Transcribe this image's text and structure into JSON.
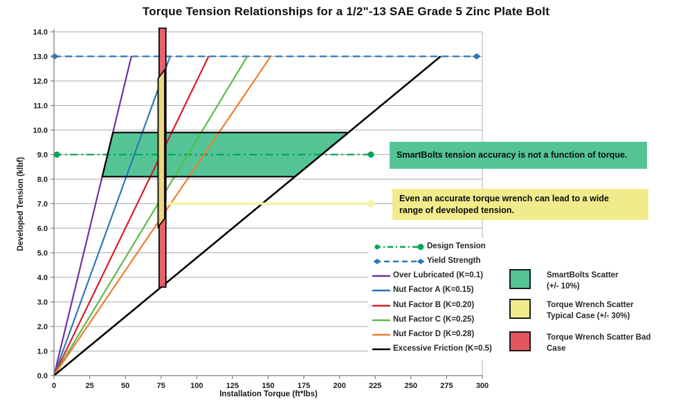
{
  "chart_data": {
    "type": "line",
    "title": "Torque Tension Relationships for a 1/2\"-13 SAE Grade 5 Zinc Plate Bolt",
    "xlabel": "Installation Torque (ft*lbs)",
    "ylabel": "Developed Tension (klbf)",
    "xlim": [
      0,
      300
    ],
    "ylim": [
      0,
      14
    ],
    "xticks": [
      0,
      25,
      50,
      75,
      100,
      125,
      150,
      175,
      200,
      225,
      250,
      275,
      300
    ],
    "yticks": [
      "0.0",
      "1.0",
      "2.0",
      "3.0",
      "4.0",
      "5.0",
      "6.0",
      "7.0",
      "8.0",
      "9.0",
      "10.0",
      "11.0",
      "12.0",
      "13.0",
      "14.0"
    ],
    "grid": "horizontal-only",
    "legend_position": "inside-lower-right",
    "series": [
      {
        "name": "Design Tension",
        "kind": "reference",
        "y": 9,
        "points": [
          [
            0,
            9
          ],
          [
            222,
            9
          ]
        ],
        "color": "#00A651",
        "dash": "dashdot",
        "marker": "circle",
        "marker_points": [
          [
            2,
            9
          ],
          [
            222,
            9
          ]
        ],
        "width": 2.2
      },
      {
        "name": "Yield Strength",
        "kind": "reference",
        "y": 13,
        "points": [
          [
            0,
            13
          ],
          [
            296,
            13
          ]
        ],
        "color": "#2E75B6",
        "dash": "dash",
        "marker": "diamond",
        "marker_points": [
          [
            0.5,
            13
          ],
          [
            296,
            13
          ]
        ],
        "width": 2.2
      },
      {
        "name": "Over Lubricated (K=0.1)",
        "k": 0.1,
        "points": [
          [
            0,
            0
          ],
          [
            54.2,
            13
          ]
        ],
        "color": "#7030A0",
        "dash": "solid",
        "width": 2.2
      },
      {
        "name": "Nut Factor A  (K=0.15)",
        "k": 0.15,
        "points": [
          [
            0,
            0
          ],
          [
            81.3,
            13
          ]
        ],
        "color": "#2E75B6",
        "dash": "solid",
        "width": 2.2
      },
      {
        "name": "Nut Factor B (K=0.20)",
        "k": 0.2,
        "points": [
          [
            0,
            0
          ],
          [
            108.3,
            13
          ]
        ],
        "color": "#D91A2A",
        "dash": "solid",
        "width": 2.2
      },
      {
        "name": "Nut Factor C (K=0.25)",
        "k": 0.25,
        "points": [
          [
            0,
            0
          ],
          [
            135.4,
            13
          ]
        ],
        "color": "#5CBA47",
        "dash": "solid",
        "width": 2.2
      },
      {
        "name": "Nut Factor D (K=0.28)",
        "k": 0.28,
        "points": [
          [
            0,
            0
          ],
          [
            151.8,
            13
          ]
        ],
        "color": "#ED7D31",
        "dash": "solid",
        "width": 2.2
      },
      {
        "name": "Excessive Friction (K=0.5)",
        "k": 0.5,
        "points": [
          [
            0,
            0
          ],
          [
            270.8,
            13
          ]
        ],
        "color": "#000000",
        "dash": "solid",
        "width": 2.6
      }
    ],
    "regions": [
      {
        "name": "smartbolts-scatter",
        "label": "SmartBolts Scatter (+/- 10%)",
        "polygon": [
          [
            41.3,
            9.9
          ],
          [
            206.3,
            9.9
          ],
          [
            168.8,
            8.1
          ],
          [
            33.8,
            8.1
          ]
        ],
        "fill": "#54C496",
        "stroke": "#000000",
        "opacity": 1
      },
      {
        "name": "torque-wrench-scatter-bad-case",
        "label": "Torque Wrench Scatter Bad Case",
        "polygon": [
          [
            73.6,
            14.15
          ],
          [
            78.4,
            14.15
          ],
          [
            78.4,
            3.6
          ],
          [
            73.6,
            3.6
          ]
        ],
        "fill": "#E4565F",
        "stroke": "#000000",
        "opacity": 0.92
      },
      {
        "name": "torque-wrench-scatter-typical",
        "label": "Torque Wrench Scatter Typical Case (+/- 30%)",
        "polygon": [
          [
            72.9,
            12.1
          ],
          [
            77.5,
            12.45
          ],
          [
            77.5,
            6.4
          ],
          [
            72.9,
            6.05
          ]
        ],
        "fill": "#F0EC8B",
        "stroke": "#000000",
        "opacity": 0.85
      }
    ],
    "callout_line": {
      "y": 7,
      "x0": 78.6,
      "x1": 221,
      "marker_x": 222,
      "color": "#F6F1A2"
    }
  },
  "legend": {
    "items": [
      {
        "label": "Design Tension",
        "color": "#00A651",
        "style": "dashdot",
        "marker": "circle"
      },
      {
        "label": "Yield Strength",
        "color": "#2E75B6",
        "style": "dash",
        "marker": "diamond"
      },
      {
        "label": "Over Lubricated (K=0.1)",
        "color": "#7030A0",
        "style": "solid"
      },
      {
        "label": "Nut Factor A  (K=0.15)",
        "color": "#2E75B6",
        "style": "solid"
      },
      {
        "label": "Nut Factor B (K=0.20)",
        "color": "#D91A2A",
        "style": "solid"
      },
      {
        "label": "Nut Factor C (K=0.25)",
        "color": "#5CBA47",
        "style": "solid"
      },
      {
        "label": "Nut Factor D (K=0.28)",
        "color": "#ED7D31",
        "style": "solid"
      },
      {
        "label": "Excessive Friction (K=0.5)",
        "color": "#000000",
        "style": "solid"
      }
    ]
  },
  "scatter_legend": {
    "items": [
      {
        "lines": [
          "SmartBolts Scatter",
          "(+/- 10%)"
        ],
        "color": "#54C496"
      },
      {
        "lines": [
          "Torque Wrench Scatter",
          "Typical Case (+/- 30%)"
        ],
        "color": "#F0EC8B"
      },
      {
        "lines": [
          "Torque Wrench Scatter Bad",
          "Case"
        ],
        "color": "#E4565F"
      }
    ]
  },
  "annotations": [
    {
      "lines": [
        "SmartBolts tension accuracy is not a function of torque."
      ],
      "bg": "#54C496"
    },
    {
      "lines": [
        "Even an accurate torque wrench can lead to a wide",
        "range of developed tension."
      ],
      "bg": "#F0EC8B"
    }
  ]
}
